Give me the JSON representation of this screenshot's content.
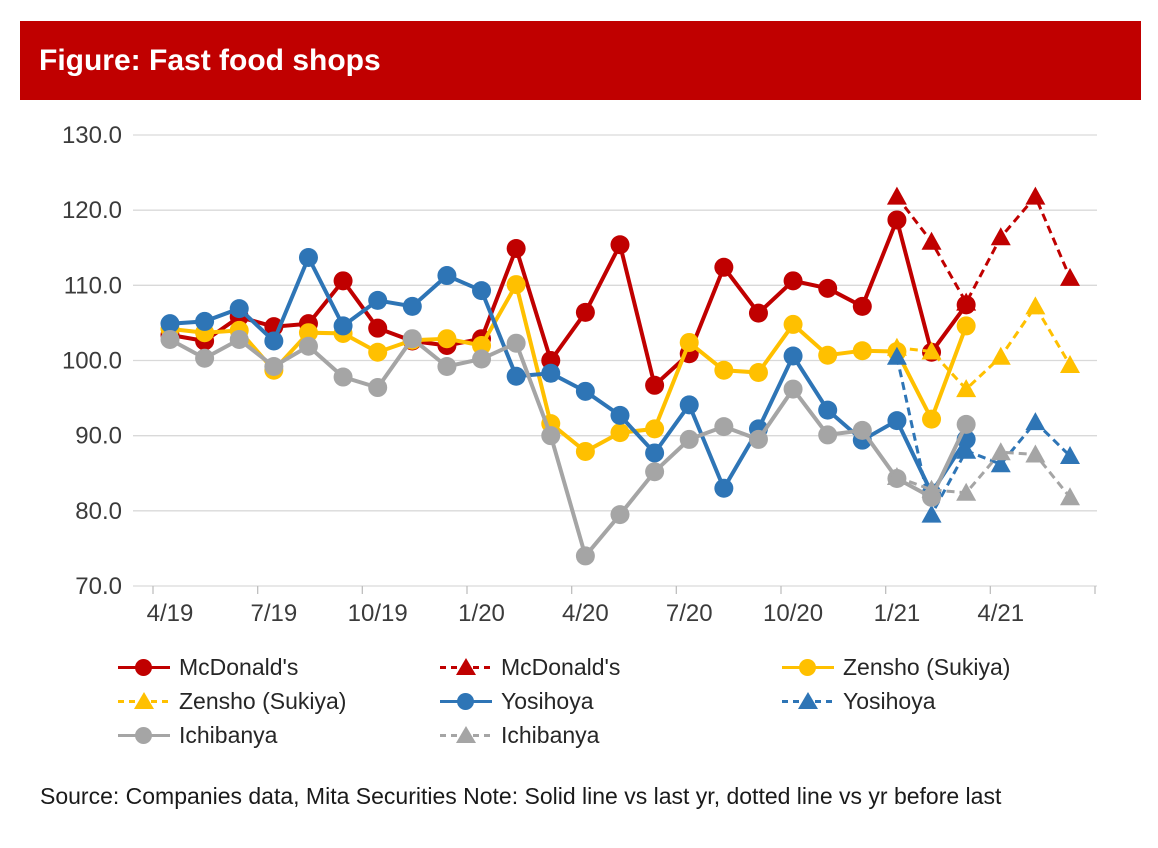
{
  "banner": {
    "title": "Figure: Fast food shops",
    "bg_color": "#C00000",
    "text_color": "#FFFFFF"
  },
  "source_note": "Source: Companies data, Mita Securities Note: Solid line vs last yr, dotted line vs yr before last",
  "colors": {
    "red": "#C00000",
    "yellow": "#FFC000",
    "blue": "#2E75B6",
    "gray": "#A5A5A5",
    "gridline": "#D9D9D9",
    "tick": "#BFBFBF",
    "axis_text": "#3B3B3B"
  },
  "chart_data": {
    "type": "line",
    "title": "Figure: Fast food shops",
    "xlabel": "",
    "ylabel": "",
    "ylim": [
      70,
      130
    ],
    "yticks": [
      70,
      80,
      90,
      100,
      110,
      120,
      130
    ],
    "ytick_labels": [
      "70.0",
      "80.0",
      "90.0",
      "100.0",
      "110.0",
      "120.0",
      "130.0"
    ],
    "xtick_labels": [
      "4/19",
      "7/19",
      "10/19",
      "1/20",
      "4/20",
      "7/20",
      "10/20",
      "1/21",
      "4/21"
    ],
    "x": [
      "4/19",
      "5/19",
      "6/19",
      "7/19",
      "8/19",
      "9/19",
      "10/19",
      "11/19",
      "12/19",
      "1/20",
      "2/20",
      "3/20",
      "4/20",
      "5/20",
      "6/20",
      "7/20",
      "8/20",
      "9/20",
      "10/20",
      "11/20",
      "12/20",
      "1/21",
      "2/21",
      "3/21",
      "4/21",
      "5/21",
      "6/21"
    ],
    "grid": true,
    "legend_position": "bottom",
    "series": [
      {
        "name": "McDonald's",
        "color": "#C00000",
        "line_style": "solid",
        "marker": "circle",
        "start_index": 0,
        "values": [
          103.4,
          102.6,
          105.8,
          104.5,
          104.9,
          110.6,
          104.3,
          102.6,
          102.0,
          102.9,
          114.9,
          100.0,
          106.4,
          115.4,
          96.7,
          100.9,
          112.4,
          106.3,
          110.6,
          109.6,
          107.2,
          118.7,
          101.1,
          107.4
        ]
      },
      {
        "name": "McDonald's",
        "color": "#C00000",
        "line_style": "dashed",
        "marker": "triangle",
        "start_index": 21,
        "values": [
          121.8,
          115.8,
          107.7,
          116.4,
          121.8,
          111.0
        ]
      },
      {
        "name": "Zensho (Sukiya)",
        "color": "#FFC000",
        "line_style": "solid",
        "marker": "circle",
        "start_index": 0,
        "values": [
          104.2,
          103.7,
          104.0,
          98.7,
          103.7,
          103.6,
          101.1,
          102.7,
          102.9,
          102.0,
          110.1,
          91.6,
          87.9,
          90.4,
          90.9,
          102.4,
          98.7,
          98.4,
          104.8,
          100.7,
          101.3,
          101.2,
          92.2,
          104.6
        ]
      },
      {
        "name": "Zensho (Sukiya)",
        "color": "#FFC000",
        "line_style": "dashed",
        "marker": "triangle",
        "start_index": 21,
        "values": [
          101.7,
          101.2,
          96.2,
          100.5,
          107.2,
          99.4
        ]
      },
      {
        "name": "Yosihoya",
        "color": "#2E75B6",
        "line_style": "solid",
        "marker": "circle",
        "start_index": 0,
        "values": [
          104.9,
          105.2,
          106.9,
          102.6,
          113.7,
          104.6,
          108.0,
          107.2,
          111.3,
          109.3,
          97.9,
          98.3,
          95.9,
          92.7,
          87.7,
          94.1,
          83.0,
          90.9,
          100.6,
          93.4,
          89.4,
          92.0,
          82.4,
          89.5
        ]
      },
      {
        "name": "Yosihoya",
        "color": "#2E75B6",
        "line_style": "dashed",
        "marker": "triangle",
        "start_index": 21,
        "values": [
          100.5,
          79.5,
          88.0,
          86.2,
          91.8,
          87.3
        ]
      },
      {
        "name": "Ichibanya",
        "color": "#A5A5A5",
        "line_style": "solid",
        "marker": "circle",
        "start_index": 0,
        "values": [
          102.8,
          100.3,
          102.8,
          99.2,
          101.9,
          97.8,
          96.4,
          102.9,
          99.2,
          100.2,
          102.3,
          90.0,
          74.0,
          79.5,
          85.2,
          89.5,
          91.2,
          89.5,
          96.2,
          90.1,
          90.7,
          84.3,
          81.8,
          91.5
        ]
      },
      {
        "name": "Ichibanya",
        "color": "#A5A5A5",
        "line_style": "dashed",
        "marker": "triangle",
        "start_index": 21,
        "values": [
          84.5,
          82.8,
          82.4,
          87.8,
          87.5,
          81.8
        ]
      }
    ]
  },
  "legend": {
    "items": [
      {
        "label": "McDonald's",
        "color": "#C00000",
        "line_style": "solid",
        "marker": "circle"
      },
      {
        "label": "McDonald's",
        "color": "#C00000",
        "line_style": "dashed",
        "marker": "triangle"
      },
      {
        "label": "Zensho (Sukiya)",
        "color": "#FFC000",
        "line_style": "solid",
        "marker": "circle"
      },
      {
        "label": "Zensho (Sukiya)",
        "color": "#FFC000",
        "line_style": "dashed",
        "marker": "triangle"
      },
      {
        "label": "Yosihoya",
        "color": "#2E75B6",
        "line_style": "solid",
        "marker": "circle"
      },
      {
        "label": "Yosihoya",
        "color": "#2E75B6",
        "line_style": "dashed",
        "marker": "triangle"
      },
      {
        "label": "Ichibanya",
        "color": "#A5A5A5",
        "line_style": "solid",
        "marker": "circle"
      },
      {
        "label": "Ichibanya",
        "color": "#A5A5A5",
        "line_style": "dashed",
        "marker": "triangle"
      }
    ]
  }
}
